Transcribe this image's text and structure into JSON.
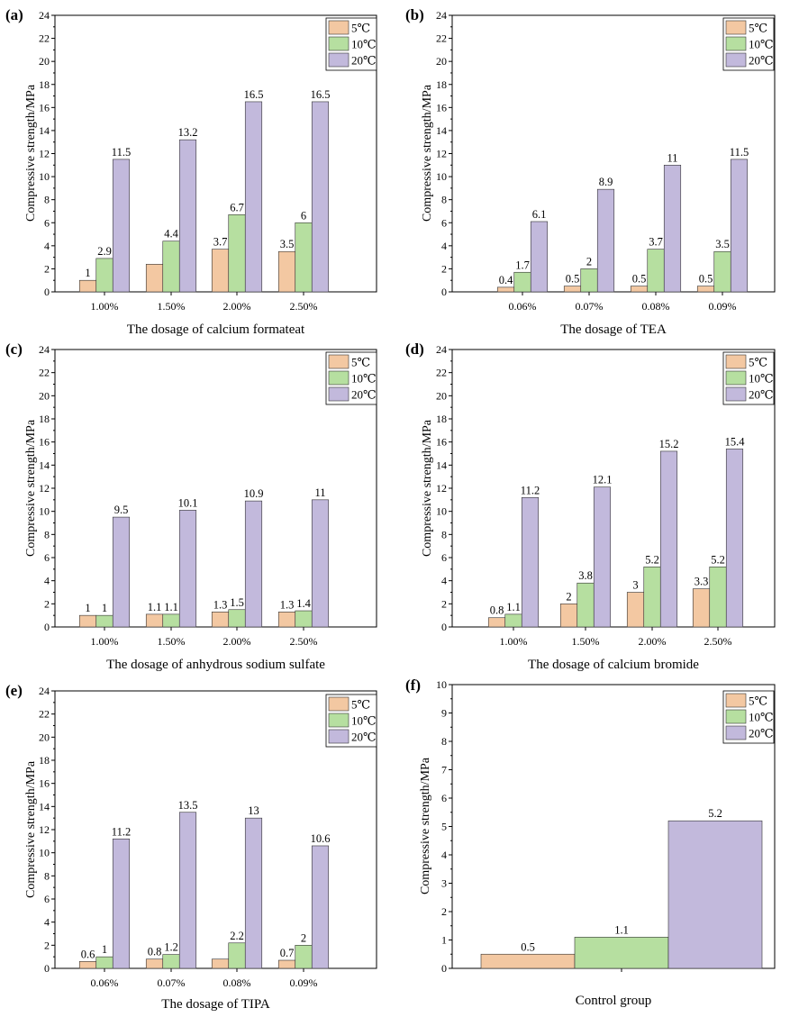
{
  "colors": {
    "s5": "#f3c8a2",
    "s10": "#b6dfa0",
    "s20": "#c2b9dc",
    "axis": "#000000"
  },
  "legend_labels": [
    "5℃",
    "10℃",
    "20℃"
  ],
  "chart_data": [
    {
      "panel_label": "(a)",
      "type": "bar",
      "categories": [
        "1.00%",
        "1.50%",
        "2.00%",
        "2.50%"
      ],
      "series": [
        {
          "name": "5℃",
          "values": [
            1,
            2.4,
            3.7,
            3.5
          ],
          "labels": [
            "1",
            "",
            "3.7",
            "3.5"
          ]
        },
        {
          "name": "10℃",
          "values": [
            2.9,
            4.4,
            6.7,
            6
          ],
          "labels": [
            "2.9",
            "4.4",
            "6.7",
            "6"
          ]
        },
        {
          "name": "20℃",
          "values": [
            11.5,
            13.2,
            16.5,
            16.5
          ],
          "labels": [
            "11.5",
            "13.2",
            "16.5",
            "16.5"
          ]
        }
      ],
      "xlabel": "The dosage of calcium formateat",
      "ylabel": "Compressive strength/MPa",
      "ylim": [
        0,
        24
      ],
      "yticks": [
        "0",
        "2",
        "4",
        "6",
        "8",
        "10",
        "12",
        "14",
        "16",
        "18",
        "20",
        "22",
        "24"
      ],
      "legend": "top-right",
      "grid": false
    },
    {
      "panel_label": "(b)",
      "type": "bar",
      "categories": [
        "0.06%",
        "0.07%",
        "0.08%",
        "0.09%"
      ],
      "series": [
        {
          "name": "5℃",
          "values": [
            0.4,
            0.5,
            0.5,
            0.5
          ],
          "labels": [
            "0.4",
            "0.5",
            "0.5",
            "0.5"
          ]
        },
        {
          "name": "10℃",
          "values": [
            1.7,
            2,
            3.7,
            3.5
          ],
          "labels": [
            "1.7",
            "2",
            "3.7",
            "3.5"
          ]
        },
        {
          "name": "20℃",
          "values": [
            6.1,
            8.9,
            11,
            11.5
          ],
          "labels": [
            "6.1",
            "8.9",
            "11",
            "11.5"
          ]
        }
      ],
      "xlabel": "The dosage of  TEA",
      "ylabel": "Compressive strength/MPa",
      "ylim": [
        0,
        24
      ],
      "yticks": [
        "0",
        "2",
        "4",
        "6",
        "8",
        "10",
        "12",
        "14",
        "16",
        "18",
        "20",
        "22",
        "24"
      ],
      "legend": "top-right",
      "grid": false
    },
    {
      "panel_label": "(c)",
      "type": "bar",
      "categories": [
        "1.00%",
        "1.50%",
        "2.00%",
        "2.50%"
      ],
      "series": [
        {
          "name": "5℃",
          "values": [
            1,
            1.1,
            1.3,
            1.3
          ],
          "labels": [
            "1",
            "1.1",
            "1.3",
            "1.3"
          ]
        },
        {
          "name": "10℃",
          "values": [
            1,
            1.1,
            1.5,
            1.4
          ],
          "labels": [
            "1",
            "1.1",
            "1.5",
            "1.4"
          ]
        },
        {
          "name": "20℃",
          "values": [
            9.5,
            10.1,
            10.9,
            11
          ],
          "labels": [
            "9.5",
            "10.1",
            "10.9",
            "11"
          ]
        }
      ],
      "xlabel": "The dosage of anhydrous sodium sulfate",
      "ylabel": "Compressive strength/MPa",
      "ylim": [
        0,
        24
      ],
      "yticks": [
        "0",
        "2",
        "4",
        "6",
        "8",
        "10",
        "12",
        "14",
        "16",
        "18",
        "20",
        "22",
        "24"
      ],
      "legend": "top-right",
      "grid": false
    },
    {
      "panel_label": "(d)",
      "type": "bar",
      "categories": [
        "1.00%",
        "1.50%",
        "2.00%",
        "2.50%"
      ],
      "series": [
        {
          "name": "5℃",
          "values": [
            0.8,
            2,
            3,
            3.3
          ],
          "labels": [
            "0.8",
            "2",
            "3",
            "3.3"
          ]
        },
        {
          "name": "10℃",
          "values": [
            1.1,
            3.8,
            5.2,
            5.2
          ],
          "labels": [
            "1.1",
            "3.8",
            "5.2",
            "5.2"
          ]
        },
        {
          "name": "20℃",
          "values": [
            11.2,
            12.1,
            15.2,
            15.4
          ],
          "labels": [
            "11.2",
            "12.1",
            "15.2",
            "15.4"
          ]
        }
      ],
      "xlabel": "The dosage of calcium bromide",
      "ylabel": "Compressive strength/MPa",
      "ylim": [
        0,
        24
      ],
      "yticks": [
        "0",
        "2",
        "4",
        "6",
        "8",
        "10",
        "12",
        "14",
        "16",
        "18",
        "20",
        "22",
        "24"
      ],
      "legend": "top-right",
      "grid": false
    },
    {
      "panel_label": "(e)",
      "type": "bar",
      "categories": [
        "0.06%",
        "0.07%",
        "0.08%",
        "0.09%"
      ],
      "series": [
        {
          "name": "5℃",
          "values": [
            0.6,
            0.8,
            0.8,
            0.7
          ],
          "labels": [
            "0.6",
            "0.8",
            "",
            "0.7"
          ]
        },
        {
          "name": "10℃",
          "values": [
            1,
            1.2,
            2.2,
            2
          ],
          "labels": [
            "1",
            "1.2",
            "2.2",
            "2"
          ]
        },
        {
          "name": "20℃",
          "values": [
            11.2,
            13.5,
            13,
            10.6
          ],
          "labels": [
            "11.2",
            "13.5",
            "13",
            "10.6"
          ]
        }
      ],
      "xlabel": "The dosage of  TIPA",
      "ylabel": "Compressive strength/MPa",
      "ylim": [
        0,
        24
      ],
      "yticks": [
        "0",
        "2",
        "4",
        "6",
        "8",
        "10",
        "12",
        "14",
        "16",
        "18",
        "20",
        "22",
        "24"
      ],
      "legend": "top-right",
      "grid": false
    },
    {
      "panel_label": "(f)",
      "type": "bar",
      "categories": [
        ""
      ],
      "series": [
        {
          "name": "5℃",
          "values": [
            0.5
          ],
          "labels": [
            "0.5"
          ]
        },
        {
          "name": "10℃",
          "values": [
            1.1
          ],
          "labels": [
            "1.1"
          ]
        },
        {
          "name": "20℃",
          "values": [
            5.2
          ],
          "labels": [
            "5.2"
          ]
        }
      ],
      "xlabel": "Control group",
      "ylabel": "Compressive strength/MPa",
      "ylim": [
        0,
        10
      ],
      "yticks": [
        "0",
        "1",
        "2",
        "3",
        "4",
        "5",
        "6",
        "7",
        "8",
        "9",
        "10"
      ],
      "legend": "top-right",
      "grid": false
    }
  ]
}
